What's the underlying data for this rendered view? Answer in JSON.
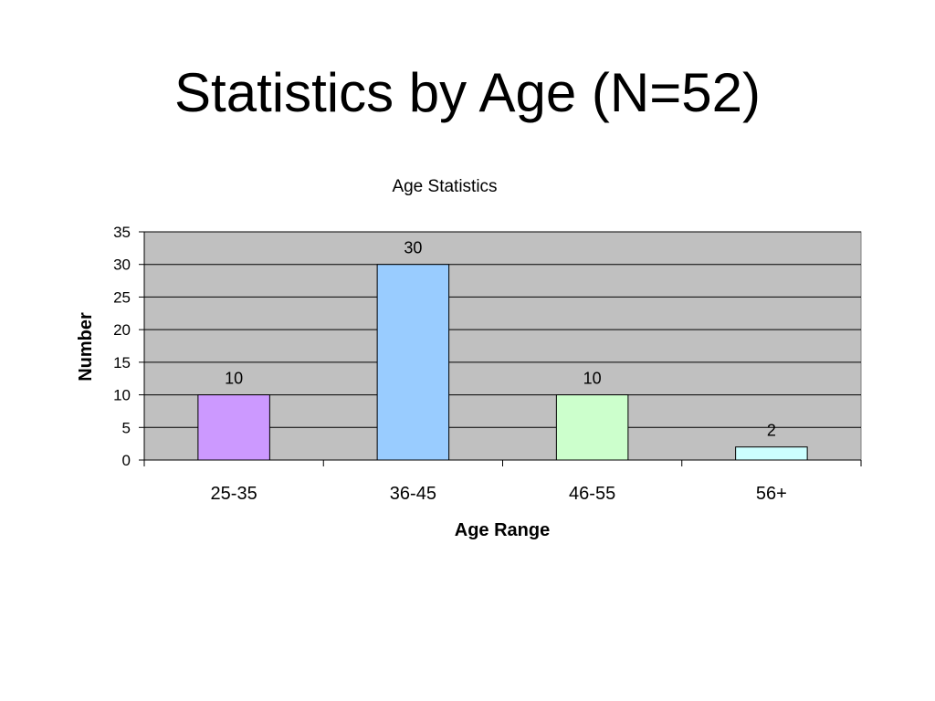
{
  "slide": {
    "title": "Statistics by Age (N=52)"
  },
  "chart_data": {
    "type": "bar",
    "title": "Age Statistics",
    "xlabel": "Age Range",
    "ylabel": "Number",
    "categories": [
      "25-35",
      "36-45",
      "46-55",
      "56+"
    ],
    "values": [
      10,
      30,
      10,
      2
    ],
    "data_labels": [
      "10",
      "30",
      "10",
      "2"
    ],
    "bar_colors": [
      "#CC99FF",
      "#99CCFF",
      "#CCFFCC",
      "#CCFFFF"
    ],
    "ylim": [
      0,
      35
    ],
    "yticks": [
      0,
      5,
      10,
      15,
      20,
      25,
      30,
      35
    ],
    "ytick_labels": [
      "0",
      "5",
      "10",
      "15",
      "20",
      "25",
      "30",
      "35"
    ],
    "grid": true,
    "plot_background": "#C0C0C0",
    "legend": "none"
  }
}
